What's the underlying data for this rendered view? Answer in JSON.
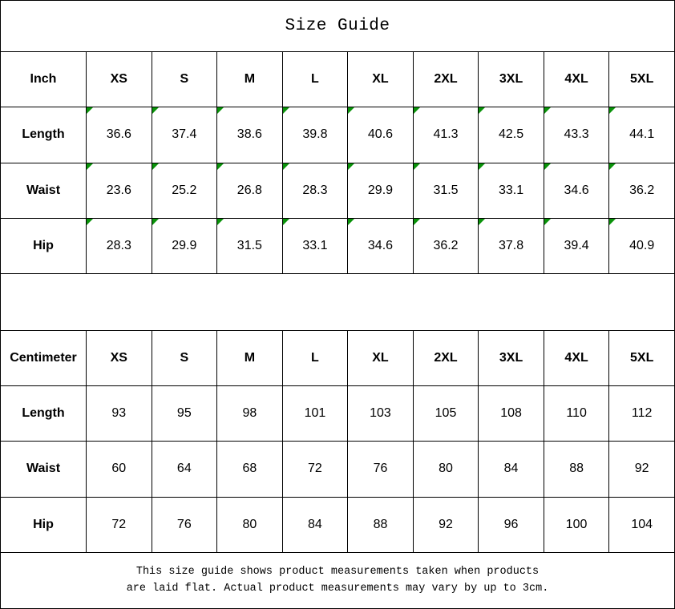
{
  "title": "Size Guide",
  "colors": {
    "background": "#ffffff",
    "border": "#000000",
    "text": "#000000",
    "flag_green": "#0a930a"
  },
  "tables": [
    {
      "unit_label": "Inch",
      "size_headers": [
        "XS",
        "S",
        "M",
        "L",
        "XL",
        "2XL",
        "3XL",
        "4XL",
        "5XL"
      ],
      "rows": [
        {
          "label": "Length",
          "values": [
            "36.6",
            "37.4",
            "38.6",
            "39.8",
            "40.6",
            "41.3",
            "42.5",
            "43.3",
            "44.1"
          ]
        },
        {
          "label": "Waist",
          "values": [
            "23.6",
            "25.2",
            "26.8",
            "28.3",
            "29.9",
            "31.5",
            "33.1",
            "34.6",
            "36.2"
          ]
        },
        {
          "label": "Hip",
          "values": [
            "28.3",
            "29.9",
            "31.5",
            "33.1",
            "34.6",
            "36.2",
            "37.8",
            "39.4",
            "40.9"
          ]
        }
      ],
      "cells_have_green_flag": true
    },
    {
      "unit_label": "Centimeter",
      "size_headers": [
        "XS",
        "S",
        "M",
        "L",
        "XL",
        "2XL",
        "3XL",
        "4XL",
        "5XL"
      ],
      "rows": [
        {
          "label": "Length",
          "values": [
            "93",
            "95",
            "98",
            "101",
            "103",
            "105",
            "108",
            "110",
            "112"
          ]
        },
        {
          "label": "Waist",
          "values": [
            "60",
            "64",
            "68",
            "72",
            "76",
            "80",
            "84",
            "88",
            "92"
          ]
        },
        {
          "label": "Hip",
          "values": [
            "72",
            "76",
            "80",
            "84",
            "88",
            "92",
            "96",
            "100",
            "104"
          ]
        }
      ],
      "cells_have_green_flag": false
    }
  ],
  "footer": {
    "line1": "This size guide shows product measurements taken when products",
    "line2": "are laid flat. Actual product measurements may vary by up to 3cm."
  }
}
